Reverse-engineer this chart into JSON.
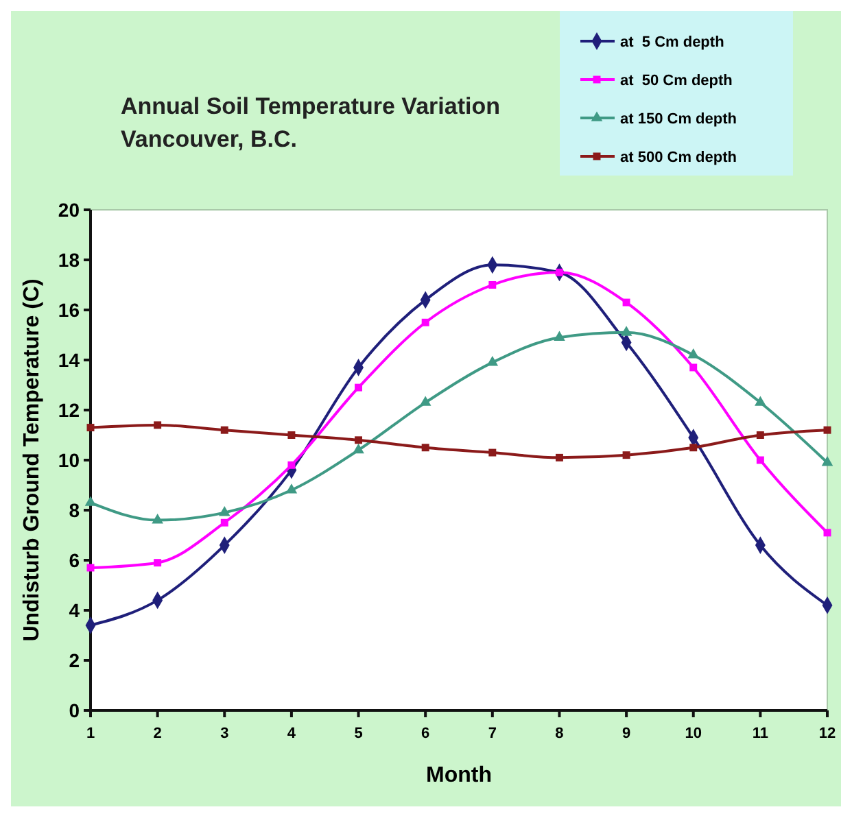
{
  "chart_data": {
    "type": "line",
    "title": "Annual Soil Temperature Variation\nVancouver, B.C.",
    "xlabel": "Month",
    "ylabel": "Undisturb Ground Temperature (C)",
    "x": [
      1,
      2,
      3,
      4,
      5,
      6,
      7,
      8,
      9,
      10,
      11,
      12
    ],
    "xlim": [
      1,
      12
    ],
    "xticks": [
      1,
      2,
      3,
      4,
      5,
      6,
      7,
      8,
      9,
      10,
      11,
      12
    ],
    "ylim": [
      0,
      20
    ],
    "yticks": [
      0,
      2,
      4,
      6,
      8,
      10,
      12,
      14,
      16,
      18,
      20
    ],
    "legend": "top right",
    "grid": false,
    "series": [
      {
        "name": "at  5 Cm depth",
        "color": "#1f1f7a",
        "marker": "diamond",
        "values": [
          3.4,
          4.4,
          6.6,
          9.6,
          13.7,
          16.4,
          17.8,
          17.5,
          14.7,
          10.9,
          6.6,
          4.2
        ]
      },
      {
        "name": "at  50 Cm depth",
        "color": "#ff00ff",
        "marker": "square",
        "values": [
          5.7,
          5.9,
          7.5,
          9.8,
          12.9,
          15.5,
          17.0,
          17.5,
          16.3,
          13.7,
          10.0,
          7.1
        ]
      },
      {
        "name": "at 150 Cm depth",
        "color": "#3f9a85",
        "marker": "triangle",
        "values": [
          8.3,
          7.6,
          7.9,
          8.8,
          10.4,
          12.3,
          13.9,
          14.9,
          15.1,
          14.2,
          12.3,
          9.9
        ]
      },
      {
        "name": "at 500 Cm depth",
        "color": "#8b1a1a",
        "marker": "square",
        "values": [
          11.3,
          11.4,
          11.2,
          11.0,
          10.8,
          10.5,
          10.3,
          10.1,
          10.2,
          10.5,
          11.0,
          11.2
        ]
      }
    ]
  }
}
